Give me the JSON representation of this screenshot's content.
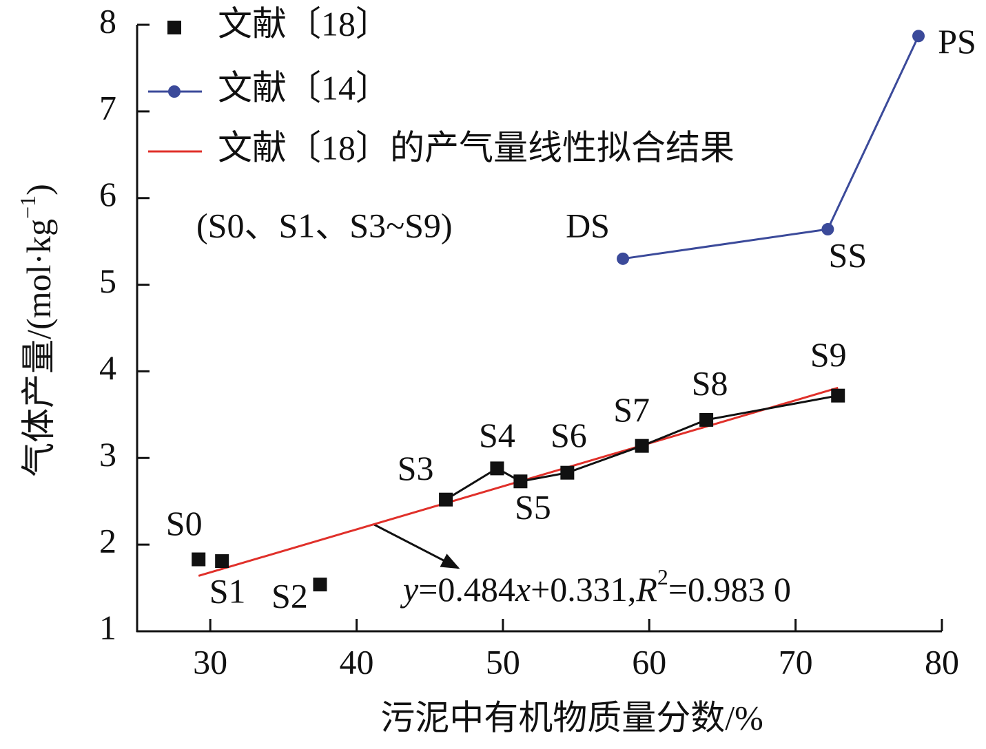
{
  "chart_data": {
    "type": "scatter",
    "xlabel": "污泥中有机物质量分数/%",
    "ylabel_parts": [
      "气体产量/(mol·kg",
      "−1",
      ")"
    ],
    "xlim": [
      25,
      80
    ],
    "xticks": [
      30,
      40,
      50,
      60,
      70,
      80
    ],
    "ylim": [
      1,
      8
    ],
    "yticks": [
      1,
      2,
      3,
      4,
      5,
      6,
      7,
      8
    ],
    "series": [
      {
        "name": "文献〔18〕",
        "color": "#111111",
        "marker": "square",
        "line_from_index": 3,
        "x": [
          29.2,
          30.8,
          37.5,
          46.1,
          49.6,
          51.2,
          54.4,
          59.5,
          63.9,
          72.9
        ],
        "values": [
          1.83,
          1.81,
          1.54,
          2.52,
          2.88,
          2.73,
          2.83,
          3.14,
          3.44,
          3.72
        ],
        "labels": [
          "S0",
          "S1",
          "S2",
          "S3",
          "S4",
          "S5",
          "S6",
          "S7",
          "S8",
          "S9"
        ]
      },
      {
        "name": "文献〔14〕",
        "color": "#3b4a9a",
        "marker": "circle",
        "line_from_index": 0,
        "x": [
          58.2,
          72.2,
          78.4
        ],
        "values": [
          5.3,
          5.64,
          7.87
        ],
        "labels": [
          "DS",
          "SS",
          "PS"
        ]
      },
      {
        "name": "文献〔18〕的产气量线性拟合结果",
        "color": "#e0302a",
        "marker": "none",
        "line_from_index": 0,
        "x": [
          29.2,
          72.9
        ],
        "values": [
          1.64,
          3.81
        ]
      }
    ],
    "legend_note": "(S0、S1、S3~S9)",
    "equation_parts": [
      "y",
      "=0.484",
      "x",
      "+0.331,",
      "R",
      "2",
      "=0.983 0"
    ]
  }
}
